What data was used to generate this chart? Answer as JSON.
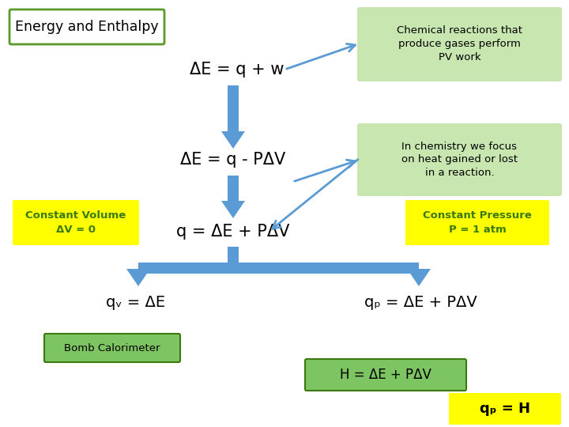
{
  "title": "Energy and Enthalpy",
  "bg_color": "#ffffff",
  "title_box_facecolor": "#ffffff",
  "title_border_color": "#5a9a2a",
  "green_box_color": "#c8e6b0",
  "yellow_box_color": "#ffff00",
  "green_label_color": "#3a7a10",
  "arrow_color": "#5b9bd5",
  "text_color": "#000000",
  "eq1": "ΔE = q + w",
  "eq2": "ΔE = q - PΔV",
  "eq3": "q = ΔE + PΔV",
  "eq4_left": "qᵥ = ΔE",
  "eq4_right": "qₚ = ΔE + PΔV",
  "eq5": "H = ΔE + PΔV",
  "eq6": "qₚ = H",
  "box1_text": "Chemical reactions that\nproduce gases perform\nPV work",
  "box2_text": "In chemistry we focus\non heat gained or lost\nin a reaction.",
  "box3_text": "Constant Volume\nΔV = 0",
  "box4_text": "Constant Pressure\nP = 1 atm",
  "label_bomb": "Bomb Calorimeter",
  "figsize": [
    7.2,
    5.4
  ],
  "dpi": 100
}
